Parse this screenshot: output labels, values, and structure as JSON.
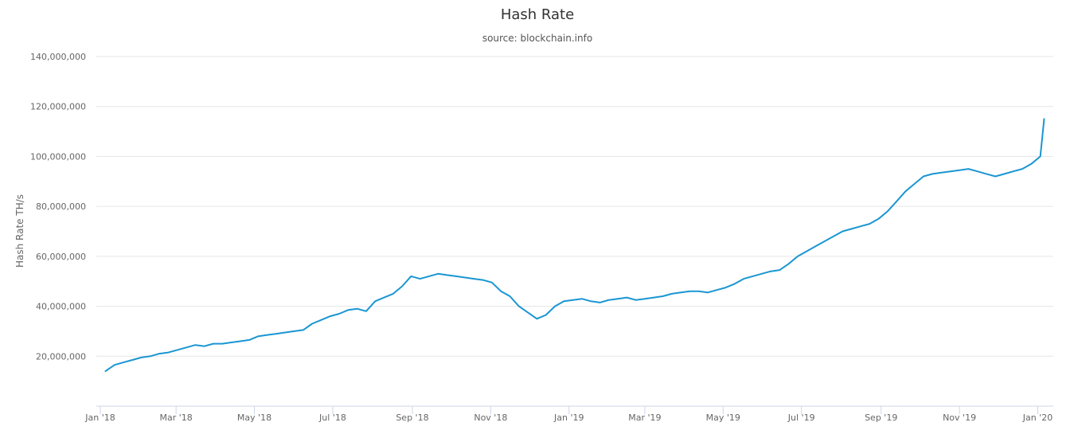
{
  "chart_data": {
    "type": "line",
    "title": "Hash Rate",
    "subtitle": "source: blockchain.info",
    "xlabel": "",
    "ylabel": "Hash Rate TH/s",
    "ylim": [
      0,
      140000000
    ],
    "xlim": [
      "2018-01-01",
      "2020-01-10"
    ],
    "grid": true,
    "legend": "none",
    "y_ticks": [
      {
        "value": 20000000,
        "label": "20,000,000"
      },
      {
        "value": 40000000,
        "label": "40,000,000"
      },
      {
        "value": 60000000,
        "label": "60,000,000"
      },
      {
        "value": 80000000,
        "label": "80,000,000"
      },
      {
        "value": 100000000,
        "label": "100,000,000"
      },
      {
        "value": 120000000,
        "label": "120,000,000"
      },
      {
        "value": 140000000,
        "label": "140,000,000"
      }
    ],
    "x_ticks": [
      {
        "date": "2018-01-01",
        "label": "Jan '18"
      },
      {
        "date": "2018-03-01",
        "label": "Mar '18"
      },
      {
        "date": "2018-05-01",
        "label": "May '18"
      },
      {
        "date": "2018-07-01",
        "label": "Jul '18"
      },
      {
        "date": "2018-09-01",
        "label": "Sep '18"
      },
      {
        "date": "2018-11-01",
        "label": "Nov '18"
      },
      {
        "date": "2019-01-01",
        "label": "Jan '19"
      },
      {
        "date": "2019-03-01",
        "label": "Mar '19"
      },
      {
        "date": "2019-05-01",
        "label": "May '19"
      },
      {
        "date": "2019-07-01",
        "label": "Jul '19"
      },
      {
        "date": "2019-09-01",
        "label": "Sep '19"
      },
      {
        "date": "2019-11-01",
        "label": "Nov '19"
      },
      {
        "date": "2020-01-01",
        "label": "Jan '20"
      }
    ],
    "colors": {
      "line": "#1a96d2",
      "grid": "#e6e6e6",
      "axis": "#ccd6eb"
    },
    "series": [
      {
        "values": [
          [
            "2018-01-05",
            14000000
          ],
          [
            "2018-01-12",
            16500000
          ],
          [
            "2018-01-19",
            17500000
          ],
          [
            "2018-01-26",
            18500000
          ],
          [
            "2018-02-02",
            19500000
          ],
          [
            "2018-02-09",
            20000000
          ],
          [
            "2018-02-16",
            21000000
          ],
          [
            "2018-02-23",
            21500000
          ],
          [
            "2018-03-02",
            22500000
          ],
          [
            "2018-03-09",
            23500000
          ],
          [
            "2018-03-16",
            24500000
          ],
          [
            "2018-03-23",
            24000000
          ],
          [
            "2018-03-30",
            25000000
          ],
          [
            "2018-04-06",
            25000000
          ],
          [
            "2018-04-13",
            25500000
          ],
          [
            "2018-04-20",
            26000000
          ],
          [
            "2018-04-27",
            26500000
          ],
          [
            "2018-05-04",
            28000000
          ],
          [
            "2018-05-11",
            28500000
          ],
          [
            "2018-05-18",
            29000000
          ],
          [
            "2018-05-25",
            29500000
          ],
          [
            "2018-06-01",
            30000000
          ],
          [
            "2018-06-08",
            30500000
          ],
          [
            "2018-06-15",
            33000000
          ],
          [
            "2018-06-22",
            34500000
          ],
          [
            "2018-06-29",
            36000000
          ],
          [
            "2018-07-06",
            37000000
          ],
          [
            "2018-07-13",
            38500000
          ],
          [
            "2018-07-20",
            39000000
          ],
          [
            "2018-07-27",
            38000000
          ],
          [
            "2018-08-03",
            42000000
          ],
          [
            "2018-08-10",
            43500000
          ],
          [
            "2018-08-17",
            45000000
          ],
          [
            "2018-08-24",
            48000000
          ],
          [
            "2018-08-31",
            52000000
          ],
          [
            "2018-09-07",
            51000000
          ],
          [
            "2018-09-14",
            52000000
          ],
          [
            "2018-09-21",
            53000000
          ],
          [
            "2018-09-28",
            52500000
          ],
          [
            "2018-10-05",
            52000000
          ],
          [
            "2018-10-12",
            51500000
          ],
          [
            "2018-10-19",
            51000000
          ],
          [
            "2018-10-26",
            50500000
          ],
          [
            "2018-11-02",
            49500000
          ],
          [
            "2018-11-09",
            46000000
          ],
          [
            "2018-11-16",
            44000000
          ],
          [
            "2018-11-23",
            40000000
          ],
          [
            "2018-11-30",
            37500000
          ],
          [
            "2018-12-07",
            35000000
          ],
          [
            "2018-12-14",
            36500000
          ],
          [
            "2018-12-21",
            40000000
          ],
          [
            "2018-12-28",
            42000000
          ],
          [
            "2019-01-04",
            42500000
          ],
          [
            "2019-01-11",
            43000000
          ],
          [
            "2019-01-18",
            42000000
          ],
          [
            "2019-01-25",
            41500000
          ],
          [
            "2019-02-01",
            42500000
          ],
          [
            "2019-02-08",
            43000000
          ],
          [
            "2019-02-15",
            43500000
          ],
          [
            "2019-02-22",
            42500000
          ],
          [
            "2019-03-01",
            43000000
          ],
          [
            "2019-03-08",
            43500000
          ],
          [
            "2019-03-15",
            44000000
          ],
          [
            "2019-03-22",
            45000000
          ],
          [
            "2019-03-29",
            45500000
          ],
          [
            "2019-04-05",
            46000000
          ],
          [
            "2019-04-12",
            46000000
          ],
          [
            "2019-04-19",
            45500000
          ],
          [
            "2019-04-26",
            46500000
          ],
          [
            "2019-05-03",
            47500000
          ],
          [
            "2019-05-10",
            49000000
          ],
          [
            "2019-05-17",
            51000000
          ],
          [
            "2019-05-24",
            52000000
          ],
          [
            "2019-05-31",
            53000000
          ],
          [
            "2019-06-07",
            54000000
          ],
          [
            "2019-06-14",
            54500000
          ],
          [
            "2019-06-21",
            57000000
          ],
          [
            "2019-06-28",
            60000000
          ],
          [
            "2019-07-05",
            62000000
          ],
          [
            "2019-07-12",
            64000000
          ],
          [
            "2019-07-19",
            66000000
          ],
          [
            "2019-07-26",
            68000000
          ],
          [
            "2019-08-02",
            70000000
          ],
          [
            "2019-08-09",
            71000000
          ],
          [
            "2019-08-16",
            72000000
          ],
          [
            "2019-08-23",
            73000000
          ],
          [
            "2019-08-30",
            75000000
          ],
          [
            "2019-09-06",
            78000000
          ],
          [
            "2019-09-13",
            82000000
          ],
          [
            "2019-09-20",
            86000000
          ],
          [
            "2019-09-27",
            89000000
          ],
          [
            "2019-10-04",
            92000000
          ],
          [
            "2019-10-11",
            93000000
          ],
          [
            "2019-10-18",
            93500000
          ],
          [
            "2019-10-25",
            94000000
          ],
          [
            "2019-11-01",
            94500000
          ],
          [
            "2019-11-08",
            95000000
          ],
          [
            "2019-11-15",
            94000000
          ],
          [
            "2019-11-22",
            93000000
          ],
          [
            "2019-11-29",
            92000000
          ],
          [
            "2019-12-06",
            93000000
          ],
          [
            "2019-12-13",
            94000000
          ],
          [
            "2019-12-20",
            95000000
          ],
          [
            "2019-12-27",
            97000000
          ],
          [
            "2020-01-03",
            100000000
          ],
          [
            "2020-01-06",
            115000000
          ]
        ]
      }
    ]
  }
}
